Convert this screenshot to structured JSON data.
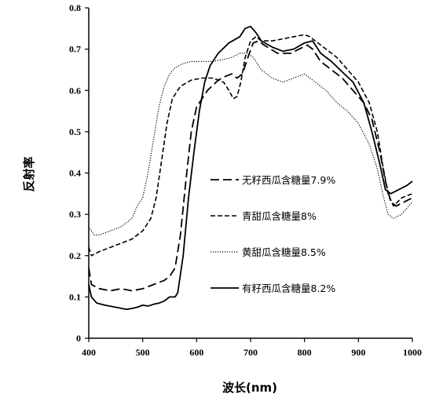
{
  "chart_data": {
    "type": "line",
    "xlabel": "波长(nm)",
    "ylabel": "反射率",
    "xlim": [
      400,
      1000
    ],
    "ylim": [
      0,
      0.8
    ],
    "x_ticks": [
      "400",
      "500",
      "600",
      "700",
      "800",
      "900",
      "1000"
    ],
    "y_ticks": [
      "0",
      "0.1",
      "0.2",
      "0.3",
      "0.4",
      "0.5",
      "0.6",
      "0.7",
      "0.8"
    ],
    "legend_position": "center",
    "series": [
      {
        "name": "无籽西瓜含糖量7.9%",
        "style": "long-dash",
        "x": [
          400,
          405,
          420,
          440,
          460,
          480,
          500,
          520,
          540,
          550,
          560,
          570,
          580,
          590,
          600,
          620,
          640,
          655,
          665,
          675,
          685,
          695,
          705,
          715,
          725,
          750,
          775,
          790,
          805,
          815,
          830,
          850,
          870,
          890,
          910,
          925,
          940,
          950,
          960,
          970,
          985,
          1000
        ],
        "y": [
          0.17,
          0.13,
          0.12,
          0.115,
          0.12,
          0.115,
          0.12,
          0.13,
          0.14,
          0.15,
          0.17,
          0.25,
          0.38,
          0.5,
          0.56,
          0.6,
          0.625,
          0.635,
          0.64,
          0.63,
          0.64,
          0.68,
          0.715,
          0.72,
          0.71,
          0.69,
          0.69,
          0.7,
          0.71,
          0.7,
          0.67,
          0.65,
          0.63,
          0.6,
          0.57,
          0.53,
          0.45,
          0.38,
          0.33,
          0.32,
          0.33,
          0.34
        ]
      },
      {
        "name": "青甜瓜含糖量8%",
        "style": "short-dash",
        "x": [
          400,
          405,
          420,
          440,
          460,
          480,
          500,
          515,
          525,
          535,
          545,
          555,
          570,
          590,
          610,
          630,
          650,
          660,
          668,
          675,
          682,
          690,
          700,
          710,
          720,
          740,
          760,
          780,
          800,
          810,
          820,
          840,
          860,
          880,
          900,
          920,
          935,
          945,
          955,
          965,
          980,
          1000
        ],
        "y": [
          0.22,
          0.2,
          0.21,
          0.22,
          0.23,
          0.24,
          0.26,
          0.29,
          0.34,
          0.43,
          0.52,
          0.58,
          0.61,
          0.625,
          0.63,
          0.63,
          0.62,
          0.6,
          0.58,
          0.585,
          0.62,
          0.68,
          0.72,
          0.73,
          0.72,
          0.72,
          0.725,
          0.73,
          0.735,
          0.73,
          0.72,
          0.7,
          0.68,
          0.65,
          0.62,
          0.57,
          0.5,
          0.42,
          0.35,
          0.32,
          0.34,
          0.35
        ]
      },
      {
        "name": "黄甜瓜含糖量8.5%",
        "style": "dotted",
        "x": [
          400,
          410,
          420,
          440,
          460,
          480,
          490,
          500,
          510,
          520,
          530,
          540,
          550,
          560,
          575,
          590,
          610,
          630,
          650,
          665,
          680,
          695,
          705,
          720,
          740,
          760,
          780,
          800,
          820,
          840,
          860,
          880,
          900,
          920,
          935,
          945,
          955,
          965,
          980,
          1000
        ],
        "y": [
          0.27,
          0.25,
          0.25,
          0.26,
          0.27,
          0.29,
          0.32,
          0.34,
          0.4,
          0.48,
          0.56,
          0.61,
          0.64,
          0.655,
          0.665,
          0.67,
          0.67,
          0.67,
          0.675,
          0.68,
          0.69,
          0.69,
          0.68,
          0.65,
          0.63,
          0.62,
          0.63,
          0.64,
          0.62,
          0.6,
          0.57,
          0.55,
          0.52,
          0.47,
          0.41,
          0.35,
          0.3,
          0.29,
          0.3,
          0.33
        ]
      },
      {
        "name": "有籽西瓜含糖量8.2%",
        "style": "solid",
        "x": [
          400,
          405,
          415,
          430,
          450,
          470,
          480,
          490,
          500,
          510,
          520,
          530,
          540,
          550,
          560,
          565,
          575,
          585,
          595,
          605,
          615,
          625,
          640,
          660,
          680,
          690,
          700,
          710,
          720,
          740,
          760,
          780,
          800,
          815,
          830,
          850,
          870,
          890,
          910,
          925,
          940,
          950,
          960,
          975,
          990,
          1000
        ],
        "y": [
          0.13,
          0.1,
          0.085,
          0.08,
          0.075,
          0.07,
          0.072,
          0.075,
          0.08,
          0.078,
          0.082,
          0.085,
          0.09,
          0.1,
          0.1,
          0.11,
          0.2,
          0.34,
          0.45,
          0.55,
          0.62,
          0.66,
          0.69,
          0.715,
          0.73,
          0.75,
          0.755,
          0.74,
          0.72,
          0.705,
          0.695,
          0.7,
          0.715,
          0.72,
          0.69,
          0.67,
          0.645,
          0.62,
          0.57,
          0.5,
          0.42,
          0.36,
          0.35,
          0.36,
          0.37,
          0.38
        ]
      }
    ]
  }
}
